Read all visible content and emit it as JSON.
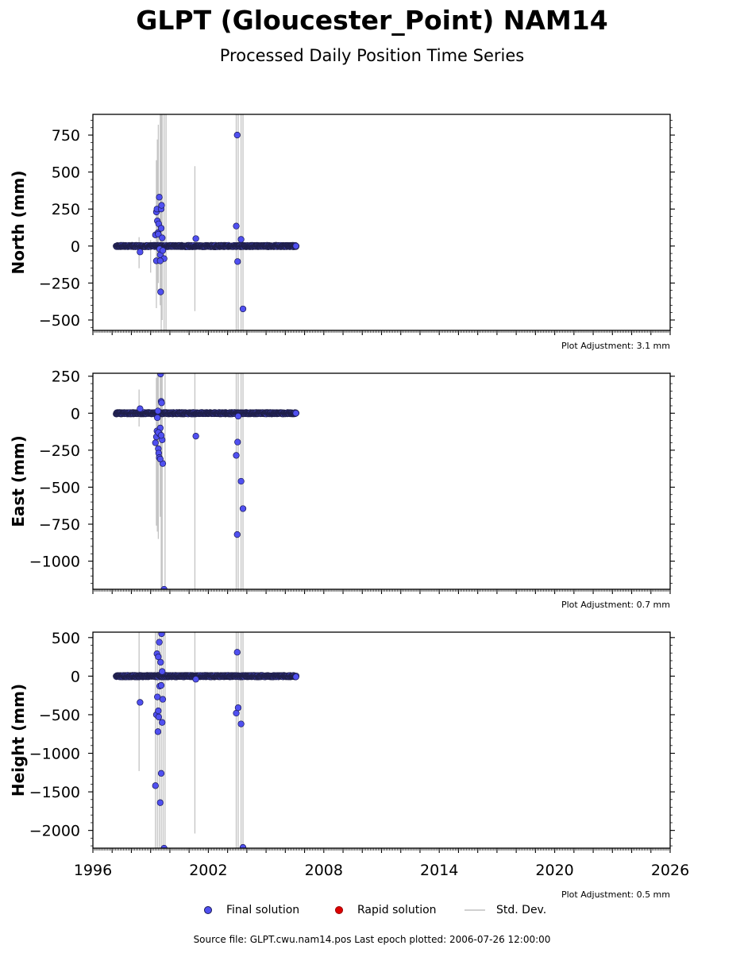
{
  "title": "GLPT (Gloucester_Point) NAM14",
  "subtitle": "Processed Daily Position Time Series",
  "footer": "Source file: GLPT.cwu.nam14.pos  Last epoch plotted: 2006-07-26 12:00:00",
  "legend": {
    "final": "Final solution",
    "rapid": "Rapid solution",
    "std": "Std. Dev."
  },
  "colors": {
    "final": "#5050f0",
    "final_edge": "#1a1a55",
    "rapid": "#dd0000",
    "std": "#b4b4b4",
    "band": "#20204a"
  },
  "chart_data": [
    {
      "type": "scatter",
      "ylabel": "North (mm)",
      "adjustment": "Plot Adjustment: 3.1 mm",
      "xlim": [
        1996,
        2026
      ],
      "ylim": [
        -570,
        890
      ],
      "yticks": [
        750,
        500,
        250,
        0,
        -250,
        -500
      ],
      "yticklabels": [
        "750",
        "500",
        "250",
        "0",
        "−250",
        "−500"
      ],
      "show_xticklabels": false,
      "band": {
        "x": [
          1997.2,
          2006.57
        ],
        "y": 0,
        "half_range_mm": 6
      },
      "errorbars": [
        [
          1998.4,
          -150,
          60
        ],
        [
          1999.0,
          -180,
          40
        ],
        [
          1999.3,
          -420,
          580
        ],
        [
          1999.35,
          -300,
          720
        ],
        [
          1999.4,
          -250,
          820
        ],
        [
          1999.5,
          -400,
          900
        ],
        [
          1999.55,
          -570,
          890
        ],
        [
          1999.6,
          -500,
          890
        ],
        [
          1999.7,
          -570,
          890
        ],
        [
          1999.8,
          -570,
          890
        ],
        [
          2001.3,
          -440,
          540
        ],
        [
          2003.45,
          -570,
          890
        ],
        [
          2003.55,
          -570,
          890
        ],
        [
          2003.7,
          -570,
          890
        ],
        [
          2003.8,
          -570,
          890
        ]
      ],
      "points": [
        [
          1998.45,
          -40
        ],
        [
          1999.25,
          75
        ],
        [
          1999.3,
          230
        ],
        [
          1999.33,
          250
        ],
        [
          1999.35,
          170
        ],
        [
          1999.38,
          90
        ],
        [
          1999.4,
          80
        ],
        [
          1999.42,
          150
        ],
        [
          1999.45,
          330
        ],
        [
          1999.47,
          -20
        ],
        [
          1999.5,
          -60
        ],
        [
          1999.52,
          -310
        ],
        [
          1999.55,
          250
        ],
        [
          1999.57,
          275
        ],
        [
          1999.6,
          55
        ],
        [
          1999.63,
          -30
        ],
        [
          1999.7,
          -85
        ],
        [
          1999.3,
          -100
        ],
        [
          1999.5,
          -100
        ],
        [
          1999.55,
          120
        ],
        [
          2001.35,
          50
        ],
        [
          2003.45,
          135
        ],
        [
          2003.5,
          750
        ],
        [
          2003.52,
          -105
        ],
        [
          2003.7,
          45
        ],
        [
          2003.8,
          -425
        ],
        [
          2006.55,
          0
        ]
      ]
    },
    {
      "type": "scatter",
      "ylabel": "East (mm)",
      "adjustment": "Plot Adjustment: 0.7 mm",
      "xlim": [
        1996,
        2026
      ],
      "ylim": [
        -1190,
        270
      ],
      "yticks": [
        250,
        0,
        -250,
        -500,
        -750,
        -1000
      ],
      "yticklabels": [
        "250",
        "0",
        "−250",
        "−500",
        "−750",
        "−1000"
      ],
      "show_xticklabels": false,
      "band": {
        "x": [
          1997.2,
          2006.57
        ],
        "y": 0,
        "half_range_mm": 6
      },
      "errorbars": [
        [
          1998.4,
          -90,
          160
        ],
        [
          1999.3,
          -760,
          240
        ],
        [
          1999.35,
          -800,
          270
        ],
        [
          1999.4,
          -850,
          270
        ],
        [
          1999.5,
          -700,
          270
        ],
        [
          1999.55,
          -1190,
          270
        ],
        [
          1999.6,
          -1190,
          270
        ],
        [
          1999.75,
          -1190,
          270
        ],
        [
          2001.3,
          -1190,
          270
        ],
        [
          2003.45,
          -1190,
          270
        ],
        [
          2003.55,
          -1190,
          270
        ],
        [
          2003.7,
          -1190,
          270
        ],
        [
          2003.8,
          -1190,
          270
        ]
      ],
      "points": [
        [
          1998.45,
          30
        ],
        [
          1999.25,
          -200
        ],
        [
          1999.3,
          -160
        ],
        [
          1999.33,
          -120
        ],
        [
          1999.35,
          -30
        ],
        [
          1999.38,
          15
        ],
        [
          1999.4,
          -240
        ],
        [
          1999.42,
          -270
        ],
        [
          1999.45,
          -300
        ],
        [
          1999.47,
          -140
        ],
        [
          1999.5,
          -100
        ],
        [
          1999.52,
          265
        ],
        [
          1999.55,
          80
        ],
        [
          1999.57,
          70
        ],
        [
          1999.6,
          -180
        ],
        [
          1999.63,
          -340
        ],
        [
          1999.7,
          -1190
        ],
        [
          1999.4,
          -130
        ],
        [
          1999.5,
          -310
        ],
        [
          1999.55,
          -150
        ],
        [
          2001.35,
          -155
        ],
        [
          2003.45,
          -285
        ],
        [
          2003.5,
          -820
        ],
        [
          2003.52,
          -195
        ],
        [
          2003.55,
          -20
        ],
        [
          2003.7,
          -460
        ],
        [
          2003.8,
          -645
        ],
        [
          2006.55,
          0
        ]
      ]
    },
    {
      "type": "scatter",
      "ylabel": "Height (mm)",
      "adjustment": "Plot Adjustment: 0.5 mm",
      "xlim": [
        1996,
        2026
      ],
      "ylim": [
        -2230,
        570
      ],
      "yticks": [
        500,
        0,
        -500,
        -1000,
        -1500,
        -2000
      ],
      "yticklabels": [
        "500",
        "0",
        "−500",
        "−1000",
        "−1500",
        "−2000"
      ],
      "xticks": [
        1996,
        2002,
        2008,
        2014,
        2020,
        2026
      ],
      "xticklabels": [
        "1996",
        "2002",
        "2008",
        "2014",
        "2020",
        "2026"
      ],
      "show_xticklabels": true,
      "band": {
        "x": [
          1997.2,
          2006.57
        ],
        "y": 0,
        "half_range_mm": 12
      },
      "errorbars": [
        [
          1998.4,
          -1230,
          570
        ],
        [
          1999.25,
          -2230,
          570
        ],
        [
          1999.35,
          -2230,
          570
        ],
        [
          1999.45,
          -2230,
          570
        ],
        [
          1999.55,
          -2230,
          570
        ],
        [
          1999.65,
          -2230,
          570
        ],
        [
          1999.75,
          -2230,
          570
        ],
        [
          2001.3,
          -2040,
          570
        ],
        [
          2003.45,
          -2230,
          570
        ],
        [
          2003.55,
          -2230,
          570
        ],
        [
          2003.7,
          -2230,
          570
        ],
        [
          2003.8,
          -2230,
          570
        ]
      ],
      "points": [
        [
          1998.45,
          -340
        ],
        [
          1999.25,
          -1420
        ],
        [
          1999.3,
          -500
        ],
        [
          1999.33,
          290
        ],
        [
          1999.35,
          -270
        ],
        [
          1999.38,
          -720
        ],
        [
          1999.4,
          250
        ],
        [
          1999.42,
          -530
        ],
        [
          1999.45,
          440
        ],
        [
          1999.47,
          -130
        ],
        [
          1999.5,
          -1640
        ],
        [
          1999.52,
          180
        ],
        [
          1999.55,
          -1260
        ],
        [
          1999.57,
          550
        ],
        [
          1999.6,
          -600
        ],
        [
          1999.63,
          -300
        ],
        [
          1999.7,
          -2230
        ],
        [
          1999.4,
          -450
        ],
        [
          1999.55,
          -120
        ],
        [
          1999.6,
          60
        ],
        [
          2001.35,
          -40
        ],
        [
          2003.45,
          -480
        ],
        [
          2003.5,
          310
        ],
        [
          2003.55,
          -410
        ],
        [
          2003.7,
          -620
        ],
        [
          2003.8,
          -2220
        ],
        [
          2006.55,
          -10
        ]
      ]
    }
  ]
}
